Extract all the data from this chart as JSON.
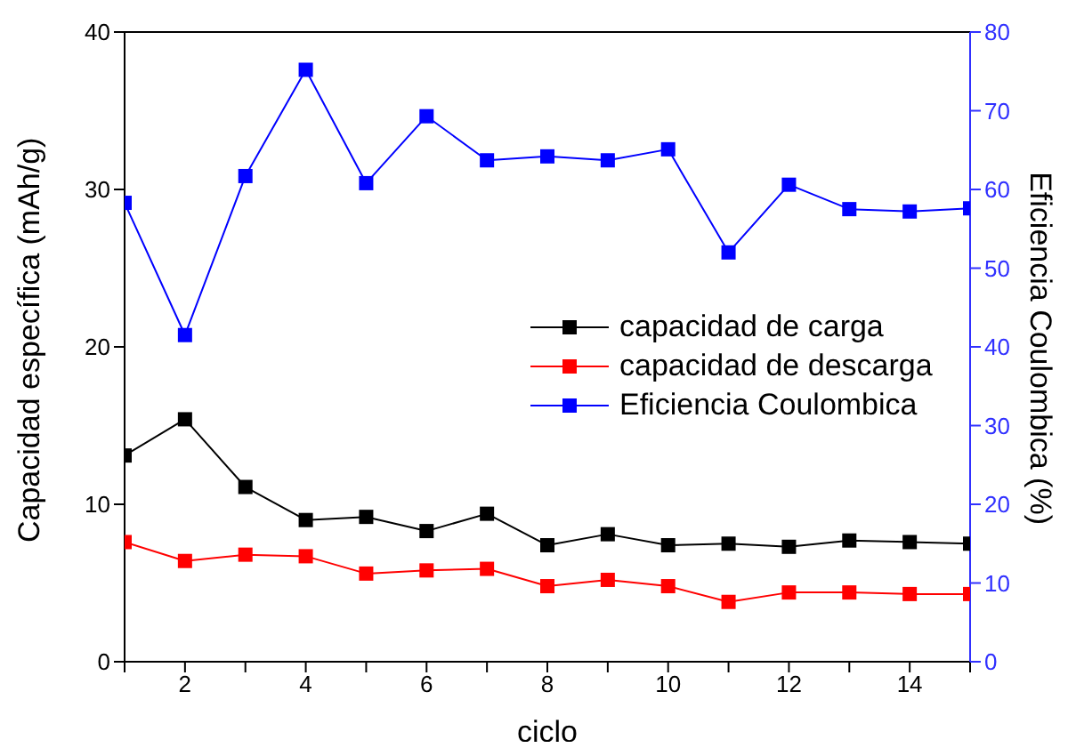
{
  "chart_data": {
    "type": "line",
    "xlabel": "ciclo",
    "ylabel": "Capacidad específica (mAh/g)",
    "y2label": "Eficiencia Coulombica (%)",
    "x": [
      1,
      2,
      3,
      4,
      5,
      6,
      7,
      8,
      9,
      10,
      11,
      12,
      13,
      14,
      15
    ],
    "xlim": [
      1,
      15
    ],
    "xticks": [
      {
        "value": 1,
        "label": null
      },
      2,
      {
        "value": 3,
        "label": null
      },
      4,
      {
        "value": 5,
        "label": null
      },
      6,
      {
        "value": 7,
        "label": null
      },
      8,
      {
        "value": 9,
        "label": null
      },
      10,
      {
        "value": 11,
        "label": null
      },
      12,
      {
        "value": 13,
        "label": null
      },
      14,
      {
        "value": 15,
        "label": null
      }
    ],
    "ylim": [
      0,
      40
    ],
    "yticks": [
      0,
      10,
      20,
      30,
      40
    ],
    "y2lim": [
      0,
      80
    ],
    "y2ticks": [
      0,
      10,
      20,
      30,
      40,
      50,
      60,
      70,
      80
    ],
    "marker": "square",
    "grid": false,
    "legend": "right",
    "series": [
      {
        "name": "capacidad de carga",
        "color": "#000000",
        "values": [
          13.1,
          15.4,
          11.1,
          9.0,
          9.2,
          8.3,
          9.4,
          7.4,
          8.1,
          7.4,
          7.5,
          7.3,
          7.7,
          7.6,
          7.5
        ]
      },
      {
        "name": "capacidad de descarga",
        "color": "#ff0000",
        "values": [
          7.6,
          6.4,
          6.8,
          6.7,
          5.6,
          5.8,
          5.9,
          4.8,
          5.2,
          4.8,
          3.8,
          4.4,
          4.4,
          4.3,
          4.3
        ]
      },
      {
        "name": "Eficiencia Coulombica",
        "color": "#0000ff",
        "axis": "y2",
        "values": [
          58.3,
          41.5,
          61.7,
          75.2,
          60.8,
          69.3,
          63.7,
          64.2,
          63.7,
          65.1,
          52.0,
          60.6,
          57.5,
          57.2,
          57.6
        ]
      }
    ]
  }
}
